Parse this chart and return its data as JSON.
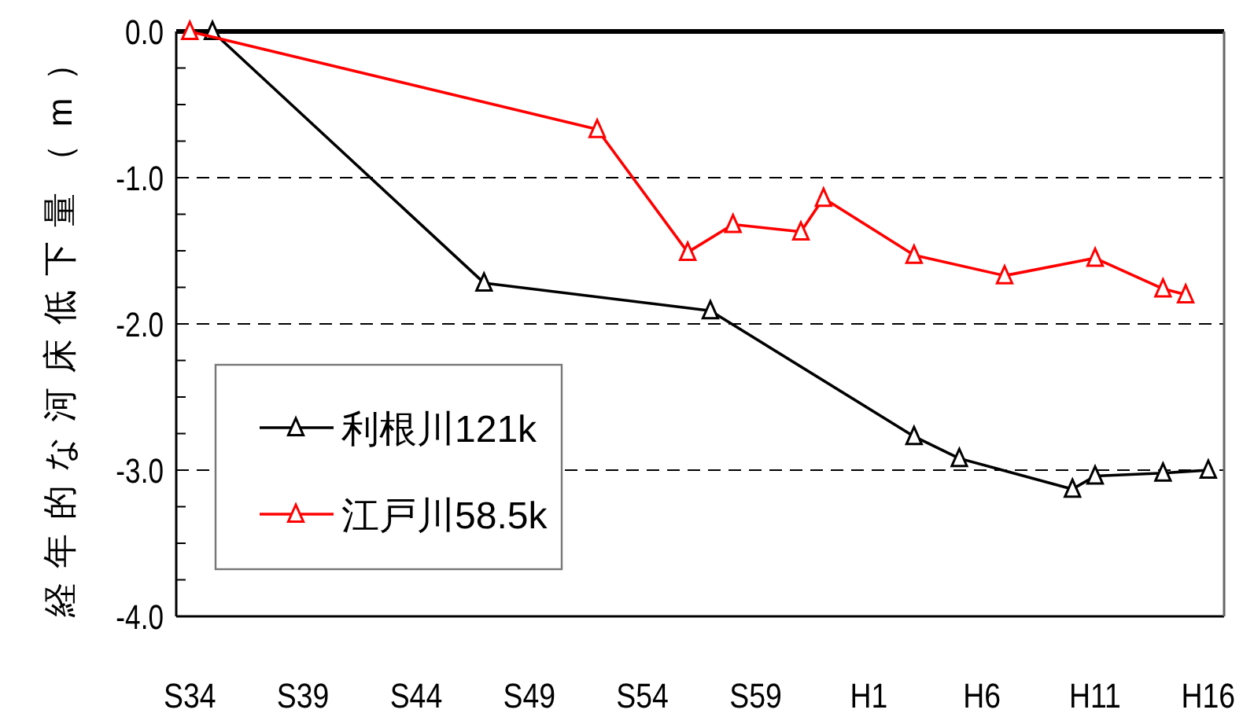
{
  "chart_data": {
    "type": "line",
    "ylabel": "経年的な河床低下量（m）",
    "categories": [
      "S34",
      null,
      null,
      null,
      null,
      "S39",
      null,
      null,
      null,
      null,
      "S44",
      null,
      null,
      null,
      null,
      "S49",
      null,
      null,
      null,
      null,
      "S54",
      null,
      null,
      null,
      null,
      "S59",
      null,
      null,
      null,
      null,
      "H1",
      null,
      null,
      null,
      null,
      "H6",
      null,
      null,
      null,
      null,
      "H11",
      null,
      null,
      null,
      null,
      "H16"
    ],
    "ylim": [
      -4,
      0
    ],
    "yticks": [
      {
        "value": 0,
        "label": "0.0"
      },
      {
        "value": -0.25,
        "label": null
      },
      {
        "value": -0.5,
        "label": null
      },
      {
        "value": -0.75,
        "label": null
      },
      {
        "value": -1,
        "label": "-1.0"
      },
      {
        "value": -1.25,
        "label": null
      },
      {
        "value": -1.5,
        "label": null
      },
      {
        "value": -1.75,
        "label": null
      },
      {
        "value": -2,
        "label": "-2.0"
      },
      {
        "value": -2.25,
        "label": null
      },
      {
        "value": -2.5,
        "label": null
      },
      {
        "value": -2.75,
        "label": null
      },
      {
        "value": -3,
        "label": "-3.0"
      },
      {
        "value": -3.25,
        "label": null
      },
      {
        "value": -3.5,
        "label": null
      },
      {
        "value": -3.75,
        "label": null
      },
      {
        "value": -4,
        "label": "-4.0"
      }
    ],
    "ref_lines": [
      {
        "axis": "y",
        "value": -1,
        "line_style": "dashed",
        "color": "#000000"
      },
      {
        "axis": "y",
        "value": -2,
        "line_style": "dashed",
        "color": "#000000"
      },
      {
        "axis": "y",
        "value": -3,
        "line_style": "dashed",
        "color": "#000000"
      }
    ],
    "marker": "triangle",
    "line_style": "solid",
    "legend": "bottom left",
    "series": [
      {
        "name": "利根川121k",
        "color": "#000000",
        "values": [
          null,
          0,
          null,
          null,
          null,
          null,
          null,
          null,
          null,
          null,
          null,
          null,
          null,
          -1.72,
          null,
          null,
          null,
          null,
          null,
          null,
          null,
          null,
          null,
          -1.91,
          null,
          null,
          null,
          null,
          null,
          null,
          null,
          null,
          -2.77,
          null,
          -2.92,
          null,
          null,
          null,
          null,
          -3.13,
          -3.04,
          null,
          null,
          -3.02,
          null,
          -3.0
        ]
      },
      {
        "name": "江戸川58.5k",
        "color": "#ff0000",
        "values": [
          0,
          null,
          null,
          null,
          null,
          null,
          null,
          null,
          null,
          null,
          null,
          null,
          null,
          null,
          null,
          null,
          null,
          null,
          -0.67,
          null,
          null,
          null,
          -1.51,
          null,
          -1.32,
          null,
          null,
          -1.37,
          -1.14,
          null,
          null,
          null,
          -1.53,
          null,
          null,
          null,
          -1.67,
          null,
          null,
          null,
          -1.55,
          null,
          null,
          -1.76,
          -1.8,
          null
        ]
      }
    ]
  }
}
